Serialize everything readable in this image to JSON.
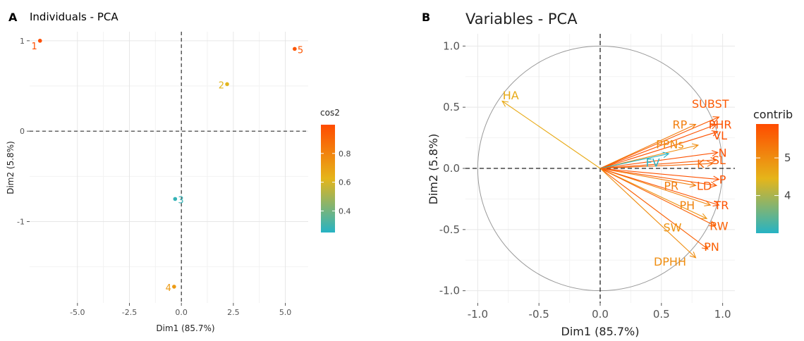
{
  "panels": {
    "a": {
      "letter": "A"
    },
    "b": {
      "letter": "B"
    }
  },
  "chart_data": [
    {
      "type": "scatter",
      "title": "Individuals - PCA",
      "xlabel": "Dim1 (85.7%)",
      "ylabel": "Dim2 (5.8%)",
      "xlim": [
        -7.3,
        6.1
      ],
      "ylim": [
        -1.9,
        1.1
      ],
      "x_ticks": [
        -5.0,
        -2.5,
        0.0,
        2.5,
        5.0
      ],
      "x_tick_labels": [
        "-5.0",
        "-2.5",
        "0.0",
        "2.5",
        "5.0"
      ],
      "y_ticks": [
        1,
        0,
        -1
      ],
      "y_tick_labels": [
        "1",
        "0",
        "-1"
      ],
      "grid": true,
      "points": [
        {
          "label": "1",
          "x": -6.8,
          "y": 1.0,
          "cos2": 0.99
        },
        {
          "label": "2",
          "x": 2.2,
          "y": 0.52,
          "cos2": 0.62
        },
        {
          "label": "3",
          "x": -0.3,
          "y": -0.75,
          "cos2": 0.28
        },
        {
          "label": "4",
          "x": -0.35,
          "y": -1.72,
          "cos2": 0.72
        },
        {
          "label": "5",
          "x": 5.45,
          "y": 0.91,
          "cos2": 0.96
        }
      ],
      "legend": {
        "title": "cos2",
        "position": "right",
        "range": [
          0.25,
          1.0
        ],
        "ticks": [
          0.4,
          0.6,
          0.8
        ],
        "tick_labels": [
          "0.4",
          "0.6",
          "0.8"
        ]
      }
    },
    {
      "type": "scatter",
      "title": "Variables - PCA",
      "xlabel": "Dim1 (85.7%)",
      "ylabel": "Dim2 (5.8%)",
      "xlim": [
        -1.1,
        1.1
      ],
      "ylim": [
        -1.1,
        1.1
      ],
      "x_ticks": [
        -1.0,
        -0.5,
        0.0,
        0.5,
        1.0
      ],
      "x_tick_labels": [
        "-1.0",
        "-0.5",
        "0.0",
        "0.5",
        "1.0"
      ],
      "y_ticks": [
        1.0,
        0.5,
        0.0,
        -0.5,
        -1.0
      ],
      "y_tick_labels": [
        "1.0",
        "0.5",
        "0.0",
        "-0.5",
        "-1.0"
      ],
      "grid": true,
      "unit_circle": true,
      "arrows": [
        {
          "label": "HA",
          "x": -0.8,
          "y": 0.55,
          "contrib": 4.6,
          "lx": -0.73,
          "ly": 0.6
        },
        {
          "label": "SUBST",
          "x": 0.97,
          "y": 0.42,
          "contrib": 5.7,
          "lx": 0.9,
          "ly": 0.53
        },
        {
          "label": "RP",
          "x": 0.78,
          "y": 0.36,
          "contrib": 5.2,
          "lx": 0.65,
          "ly": 0.36
        },
        {
          "label": "PHR",
          "x": 0.95,
          "y": 0.36,
          "contrib": 5.8,
          "lx": 0.98,
          "ly": 0.36
        },
        {
          "label": "VL",
          "x": 0.96,
          "y": 0.3,
          "contrib": 5.8,
          "lx": 0.98,
          "ly": 0.27
        },
        {
          "label": "PPNs",
          "x": 0.8,
          "y": 0.19,
          "contrib": 5.0,
          "lx": 0.57,
          "ly": 0.2
        },
        {
          "label": "N",
          "x": 0.96,
          "y": 0.13,
          "contrib": 5.8,
          "lx": 1.0,
          "ly": 0.13
        },
        {
          "label": "SL",
          "x": 0.95,
          "y": 0.07,
          "contrib": 5.7,
          "lx": 0.97,
          "ly": 0.07
        },
        {
          "label": "FV",
          "x": 0.56,
          "y": 0.12,
          "contrib": 3.0,
          "lx": 0.43,
          "ly": 0.05
        },
        {
          "label": "K",
          "x": 0.92,
          "y": 0.04,
          "contrib": 5.5,
          "lx": 0.82,
          "ly": 0.04
        },
        {
          "label": "P",
          "x": 0.97,
          "y": -0.09,
          "contrib": 5.8,
          "lx": 1.0,
          "ly": -0.09
        },
        {
          "label": "PR",
          "x": 0.78,
          "y": -0.14,
          "contrib": 5.2,
          "lx": 0.58,
          "ly": -0.14
        },
        {
          "label": "LD",
          "x": 0.95,
          "y": -0.14,
          "contrib": 5.7,
          "lx": 0.85,
          "ly": -0.14
        },
        {
          "label": "PH",
          "x": 0.9,
          "y": -0.3,
          "contrib": 5.1,
          "lx": 0.71,
          "ly": -0.3
        },
        {
          "label": "TR",
          "x": 0.97,
          "y": -0.3,
          "contrib": 5.8,
          "lx": 0.99,
          "ly": -0.3
        },
        {
          "label": "SW",
          "x": 0.87,
          "y": -0.41,
          "contrib": 4.9,
          "lx": 0.59,
          "ly": -0.48
        },
        {
          "label": "RW",
          "x": 0.94,
          "y": -0.47,
          "contrib": 5.6,
          "lx": 0.97,
          "ly": -0.47
        },
        {
          "label": "PN",
          "x": 0.88,
          "y": -0.66,
          "contrib": 5.6,
          "lx": 0.91,
          "ly": -0.64
        },
        {
          "label": "DPHH",
          "x": 0.78,
          "y": -0.73,
          "contrib": 5.0,
          "lx": 0.57,
          "ly": -0.76
        }
      ],
      "legend": {
        "title": "contrib",
        "position": "right",
        "range": [
          3.0,
          5.9
        ],
        "ticks": [
          4,
          5
        ],
        "tick_labels": [
          "4",
          "5"
        ]
      }
    }
  ]
}
